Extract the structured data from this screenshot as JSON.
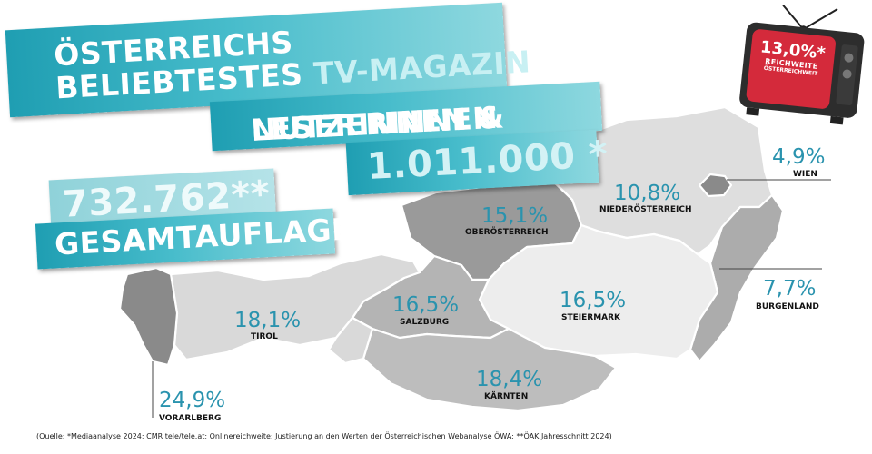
{
  "headline": {
    "line1": "ÖSTERREICHS",
    "line2_main": "BELIEBTESTES",
    "line2_highlight": "TV-MAGAZIN"
  },
  "readers_banner": {
    "part1": "LESERINNEN & ",
    "part2": "NUTZERINNEN"
  },
  "readers_number": "1.011.000 *",
  "circulation_number": "732.762**",
  "circulation_label": "GESAMTAUFLAGE",
  "tv_badge": {
    "percent": "13,0%*",
    "label": "REICHWEITE",
    "sublabel": "ÖSTERREICHWEIT"
  },
  "regions": {
    "wien": {
      "pct": "4,9%",
      "name": "WIEN"
    },
    "niederoesterreich": {
      "pct": "10,8%",
      "name": "NIEDERÖSTERREICH"
    },
    "oberoesterreich": {
      "pct": "15,1%",
      "name": "OBERÖSTERREICH"
    },
    "burgenland": {
      "pct": "7,7%",
      "name": "BURGENLAND"
    },
    "salzburg": {
      "pct": "16,5%",
      "name": "SALZBURG"
    },
    "steiermark": {
      "pct": "16,5%",
      "name": "STEIERMARK"
    },
    "tirol": {
      "pct": "18,1%",
      "name": "TIROL"
    },
    "kaernten": {
      "pct": "18,4%",
      "name": "KÄRNTEN"
    },
    "vorarlberg": {
      "pct": "24,9%",
      "name": "VORARLBERG"
    }
  },
  "source_note": "(Quelle: *Mediaanalyse 2024; CMR tele/tele.at; Onlinereichweite: Justierung an den Werten der Österreichischen Webanalyse ÖWA; **ÖAK Jahresschnitt 2024)",
  "colors": {
    "accent": "#2a93ae",
    "banner_dark": "#1f9eb2",
    "banner_light": "#8ed8df",
    "region_dark": "#8a8a8a",
    "region_mid": "#a9a9a9",
    "region_light": "#d4d4d4",
    "region_lightest": "#ececec"
  }
}
